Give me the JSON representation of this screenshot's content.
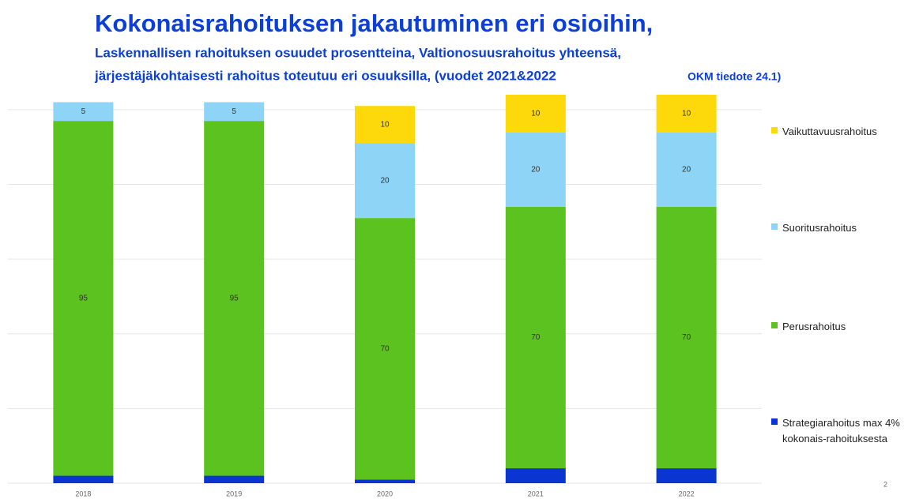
{
  "chart_data": {
    "type": "stacked_bar",
    "title": "Kokonaisrahoituksen jakautuminen eri osioihin,",
    "subtitle": [
      "Laskennallisen rahoituksen osuudet prosentteina, Valtionosuusrahoitus yhteensä,",
      "järjestäjäkohtaisesti  rahoitus toteutuu eri osuuksilla, (vuodet 2021&2022"
    ],
    "subtitle_note": "OKM tiedote 24.1)",
    "categories": [
      "2018",
      "2019",
      "2020",
      "2021",
      "2022"
    ],
    "series": [
      {
        "name": "Strategiarahoitus max 4% kokonais-rahoituksesta",
        "color": "#0a35d0",
        "values": [
          2,
          2,
          1,
          4,
          4
        ],
        "labels": false
      },
      {
        "name": "Perusrahoitus",
        "color": "#5cc21f",
        "values": [
          95,
          95,
          70,
          70,
          70
        ],
        "labels": true
      },
      {
        "name": "Suoritusrahoitus",
        "color": "#8ed4f6",
        "values": [
          5,
          5,
          20,
          20,
          20
        ],
        "labels": true
      },
      {
        "name": "Vaikuttavuusrahoitus",
        "color": "#fdd80a",
        "values": [
          null,
          null,
          10,
          10,
          10
        ],
        "labels": true
      }
    ],
    "ylim": [
      0,
      104
    ],
    "yticks": [
      0,
      20,
      40,
      60,
      80,
      100
    ],
    "grid": true,
    "page_number": "2"
  }
}
